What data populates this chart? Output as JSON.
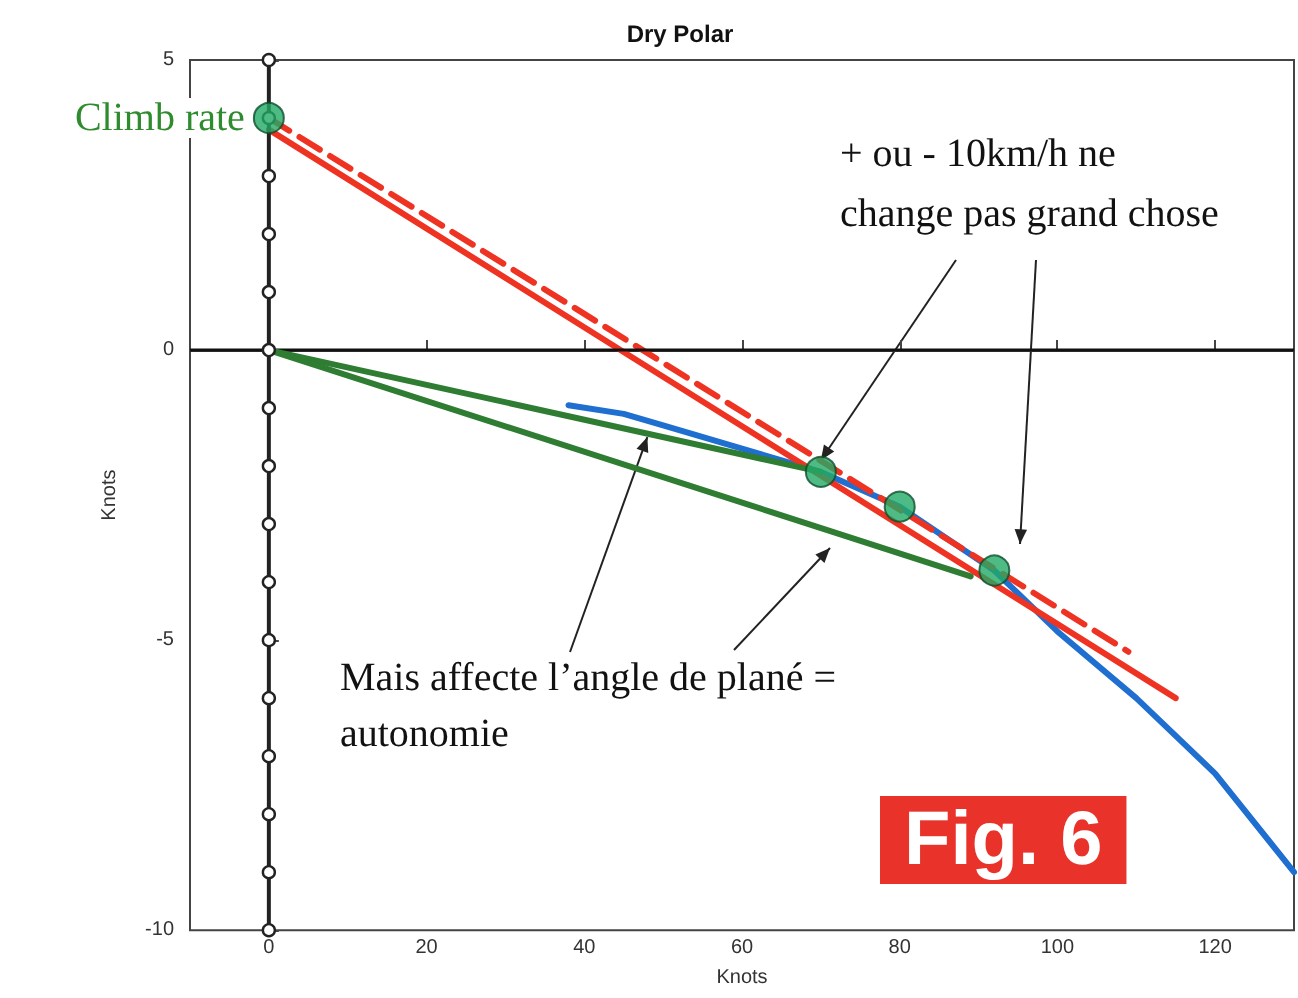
{
  "chart_data": {
    "type": "line",
    "title": "Dry Polar",
    "xlabel": "Knots",
    "ylabel": "Knots",
    "xlim": [
      -10,
      130
    ],
    "ylim": [
      -10,
      5
    ],
    "xticks": [
      0,
      20,
      40,
      60,
      80,
      100,
      120
    ],
    "yticks": [
      -10,
      -5,
      0,
      5
    ],
    "grid": false,
    "ref_lines": [
      {
        "axis": "y",
        "value": 0,
        "color": "#111111"
      }
    ],
    "annotations": [
      {
        "text": "Climb rate",
        "x": 0,
        "y": 4
      },
      {
        "text": "+ ou - 10km/h ne\nchange pas grand chose",
        "x": 70,
        "y": -1.9
      },
      {
        "text": "Mais affecte l’angle de plané =\nautonomie",
        "x": 48,
        "y": -1.5
      },
      "Fig. 6"
    ],
    "series": [
      {
        "color": "#1f6fd0",
        "x": [
          38,
          45,
          50,
          60,
          70,
          80,
          92,
          100,
          110,
          120,
          130
        ],
        "values": [
          -0.95,
          -1.1,
          -1.3,
          -1.7,
          -2.1,
          -2.7,
          -3.8,
          -4.85,
          -6.0,
          -7.3,
          -9.0
        ]
      },
      {
        "color": "#ee3322",
        "x": [
          0,
          115
        ],
        "values": [
          3.8,
          -6.0
        ]
      },
      {
        "color": "#ee3322",
        "line_style": "dashed",
        "x": [
          0,
          109
        ],
        "values": [
          4.0,
          -5.2
        ]
      },
      {
        "color": "#2e7d32",
        "x": [
          0,
          70
        ],
        "values": [
          0,
          -2.1
        ]
      },
      {
        "color": "#2e7d32",
        "x": [
          0,
          89
        ],
        "values": [
          0,
          -3.9
        ]
      },
      {
        "type": "scatter",
        "color": "#22aa66",
        "marker": "circle",
        "x": [
          0,
          70,
          80,
          92
        ],
        "values": [
          4,
          -2.1,
          -2.7,
          -3.8
        ]
      },
      {
        "color": "#222222",
        "marker": "circle",
        "x": [
          0,
          0,
          0,
          0,
          0,
          0,
          0,
          0,
          0,
          0,
          0,
          0,
          0,
          0,
          0,
          0
        ],
        "values": [
          -10,
          -9,
          -8,
          -7,
          -6,
          -5,
          -4,
          -3,
          -2,
          -1,
          0,
          1,
          2,
          3,
          4,
          5
        ]
      }
    ]
  }
}
